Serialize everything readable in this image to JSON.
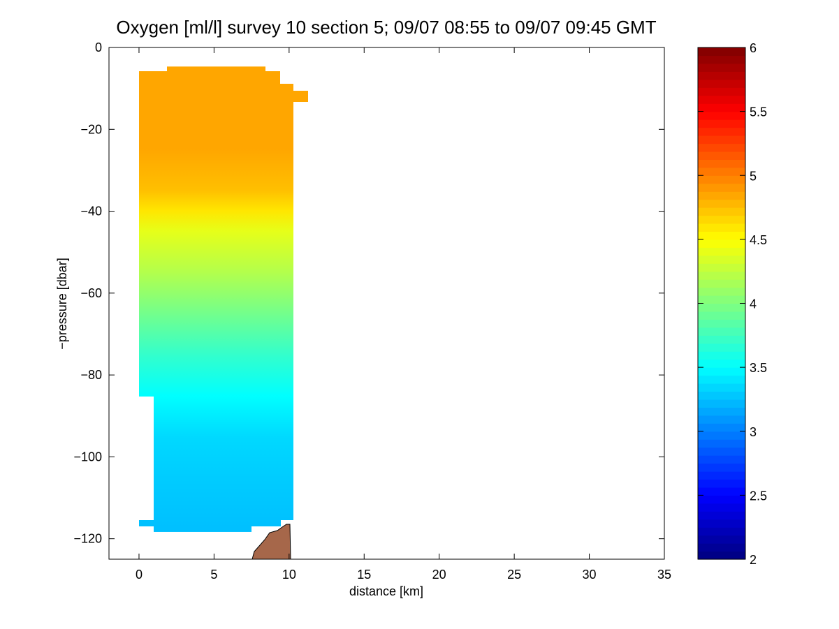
{
  "chart_data": {
    "type": "heatmap",
    "title": "Oxygen [ml/l] survey 10 section 5; 09/07 08:55 to 09/07 09:45 GMT",
    "xlabel": "distance [km]",
    "ylabel": "−pressure [dbar]",
    "xlim": [
      -2,
      35
    ],
    "ylim": [
      -125,
      0
    ],
    "x_ticks": [
      0,
      5,
      10,
      15,
      20,
      25,
      30,
      35
    ],
    "y_ticks": [
      0,
      -20,
      -40,
      -60,
      -80,
      -100,
      -120
    ],
    "y_tick_labels": [
      "0",
      "−20",
      "−40",
      "−60",
      "−80",
      "−100",
      "−120"
    ],
    "grid": false,
    "colorbar": {
      "colormap": "jet",
      "range": [
        2,
        6
      ],
      "ticks": [
        2,
        2.5,
        3,
        3.5,
        4,
        4.5,
        5,
        5.5,
        6
      ],
      "tick_labels": [
        "2",
        "2.5",
        "3",
        "3.5",
        "4",
        "4.5",
        "5",
        "5.5",
        "6"
      ]
    },
    "section_x_km": [
      0,
      10.2
    ],
    "section_pressure_range": [
      -118,
      -5
    ],
    "depth_profile": [
      {
        "pressure": -6,
        "oxygen": 4.85
      },
      {
        "pressure": -15,
        "oxygen": 4.85
      },
      {
        "pressure": -25,
        "oxygen": 4.85
      },
      {
        "pressure": -35,
        "oxygen": 4.75
      },
      {
        "pressure": -40,
        "oxygen": 4.6
      },
      {
        "pressure": -45,
        "oxygen": 4.4
      },
      {
        "pressure": -55,
        "oxygen": 4.2
      },
      {
        "pressure": -65,
        "oxygen": 3.95
      },
      {
        "pressure": -75,
        "oxygen": 3.7
      },
      {
        "pressure": -85,
        "oxygen": 3.5
      },
      {
        "pressure": -95,
        "oxygen": 3.35
      },
      {
        "pressure": -105,
        "oxygen": 3.3
      },
      {
        "pressure": -118,
        "oxygen": 3.25
      }
    ],
    "seafloor_color": "#a6674a"
  }
}
